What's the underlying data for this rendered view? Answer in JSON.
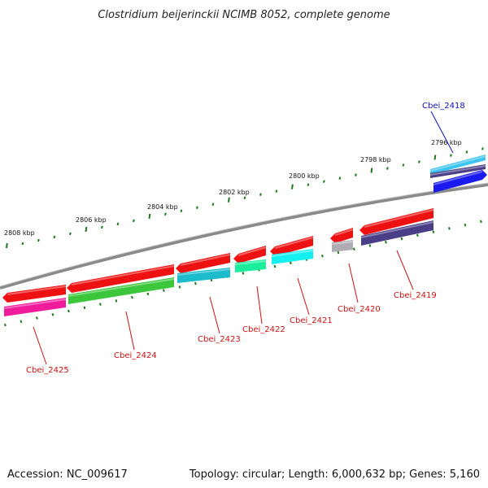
{
  "title": "Clostridium beijerinckii NCIMB 8052, complete genome",
  "footer": {
    "accession": "Accession: NC_009617",
    "stats": "Topology: circular; Length: 6,000,632 bp; Genes: 5,160"
  },
  "scale_labels": [
    "2796 kbp",
    "2798 kbp",
    "2800 kbp",
    "2802 kbp",
    "2804 kbp",
    "2806 kbp",
    "2808 kbp"
  ],
  "genes": [
    {
      "name": "Cbei_2418",
      "label_color": "#1010c0",
      "cds_color": "#1a1aee",
      "gene_color": "#3cc4f0"
    },
    {
      "name": "Cbei_2419",
      "label_color": "#cc1111",
      "cds_color": "#ee1111",
      "gene_color": "#4a3f86"
    },
    {
      "name": "Cbei_2420",
      "label_color": "#cc1111",
      "cds_color": "#ee1111",
      "gene_color": "#b0acb4"
    },
    {
      "name": "Cbei_2421",
      "label_color": "#cc1111",
      "cds_color": "#ee1111",
      "gene_color": "#14f0f0"
    },
    {
      "name": "Cbei_2422",
      "label_color": "#cc1111",
      "cds_color": "#ee1111",
      "gene_color": "#18ee9c"
    },
    {
      "name": "Cbei_2423",
      "label_color": "#cc1111",
      "cds_color": "#ee1111",
      "gene_color": "#1cbccc"
    },
    {
      "name": "Cbei_2424",
      "label_color": "#cc1111",
      "cds_color": "#ee1111",
      "gene_color": "#3cc63c"
    },
    {
      "name": "Cbei_2425",
      "label_color": "#cc1111",
      "cds_color": "#ee1111",
      "gene_color": "#f01c9c"
    }
  ]
}
